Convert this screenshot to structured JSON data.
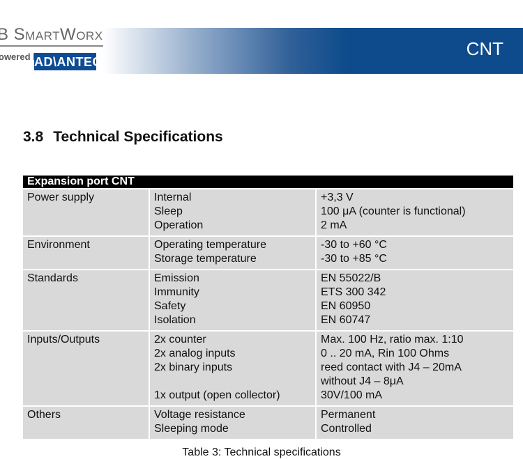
{
  "header": {
    "logo_text": "B SmartWorx",
    "powered_by": "owered by",
    "advantech": "AD\\ANTECH",
    "section_tag": "CNT"
  },
  "section": {
    "number": "3.8",
    "title": "Technical Specifications"
  },
  "table": {
    "header": "Expansion port CNT",
    "rows": [
      {
        "category": "Power supply",
        "params": [
          "Internal",
          "Sleep",
          "Operation"
        ],
        "values": [
          "+3,3 V",
          "100 μA (counter is functional)",
          "2 mA"
        ]
      },
      {
        "category": "Environment",
        "params": [
          "Operating temperature",
          "Storage temperature"
        ],
        "values": [
          "-30 to +60 °C",
          "-30 to +85 °C"
        ]
      },
      {
        "category": "Standards",
        "params": [
          "Emission",
          "Immunity",
          "Safety",
          "Isolation"
        ],
        "values": [
          "EN 55022/B",
          "ETS 300 342",
          "EN 60950",
          "EN 60747"
        ]
      },
      {
        "category": "Inputs/Outputs",
        "params": [
          "2x counter",
          "2x analog inputs",
          "2x binary inputs",
          "",
          "1x output (open collector)"
        ],
        "values": [
          "Max. 100 Hz, ratio max. 1:10",
          "0 .. 20 mA, Rin 100 Ohms",
          "reed contact with J4 – 20mA",
          "without J4 – 8μA",
          "30V/100 mA"
        ]
      },
      {
        "category": "Others",
        "params": [
          "Voltage resistance",
          "Sleeping mode"
        ],
        "values": [
          "Permanent",
          "Controlled"
        ]
      }
    ],
    "caption": "Table 3: Technical specifications"
  }
}
